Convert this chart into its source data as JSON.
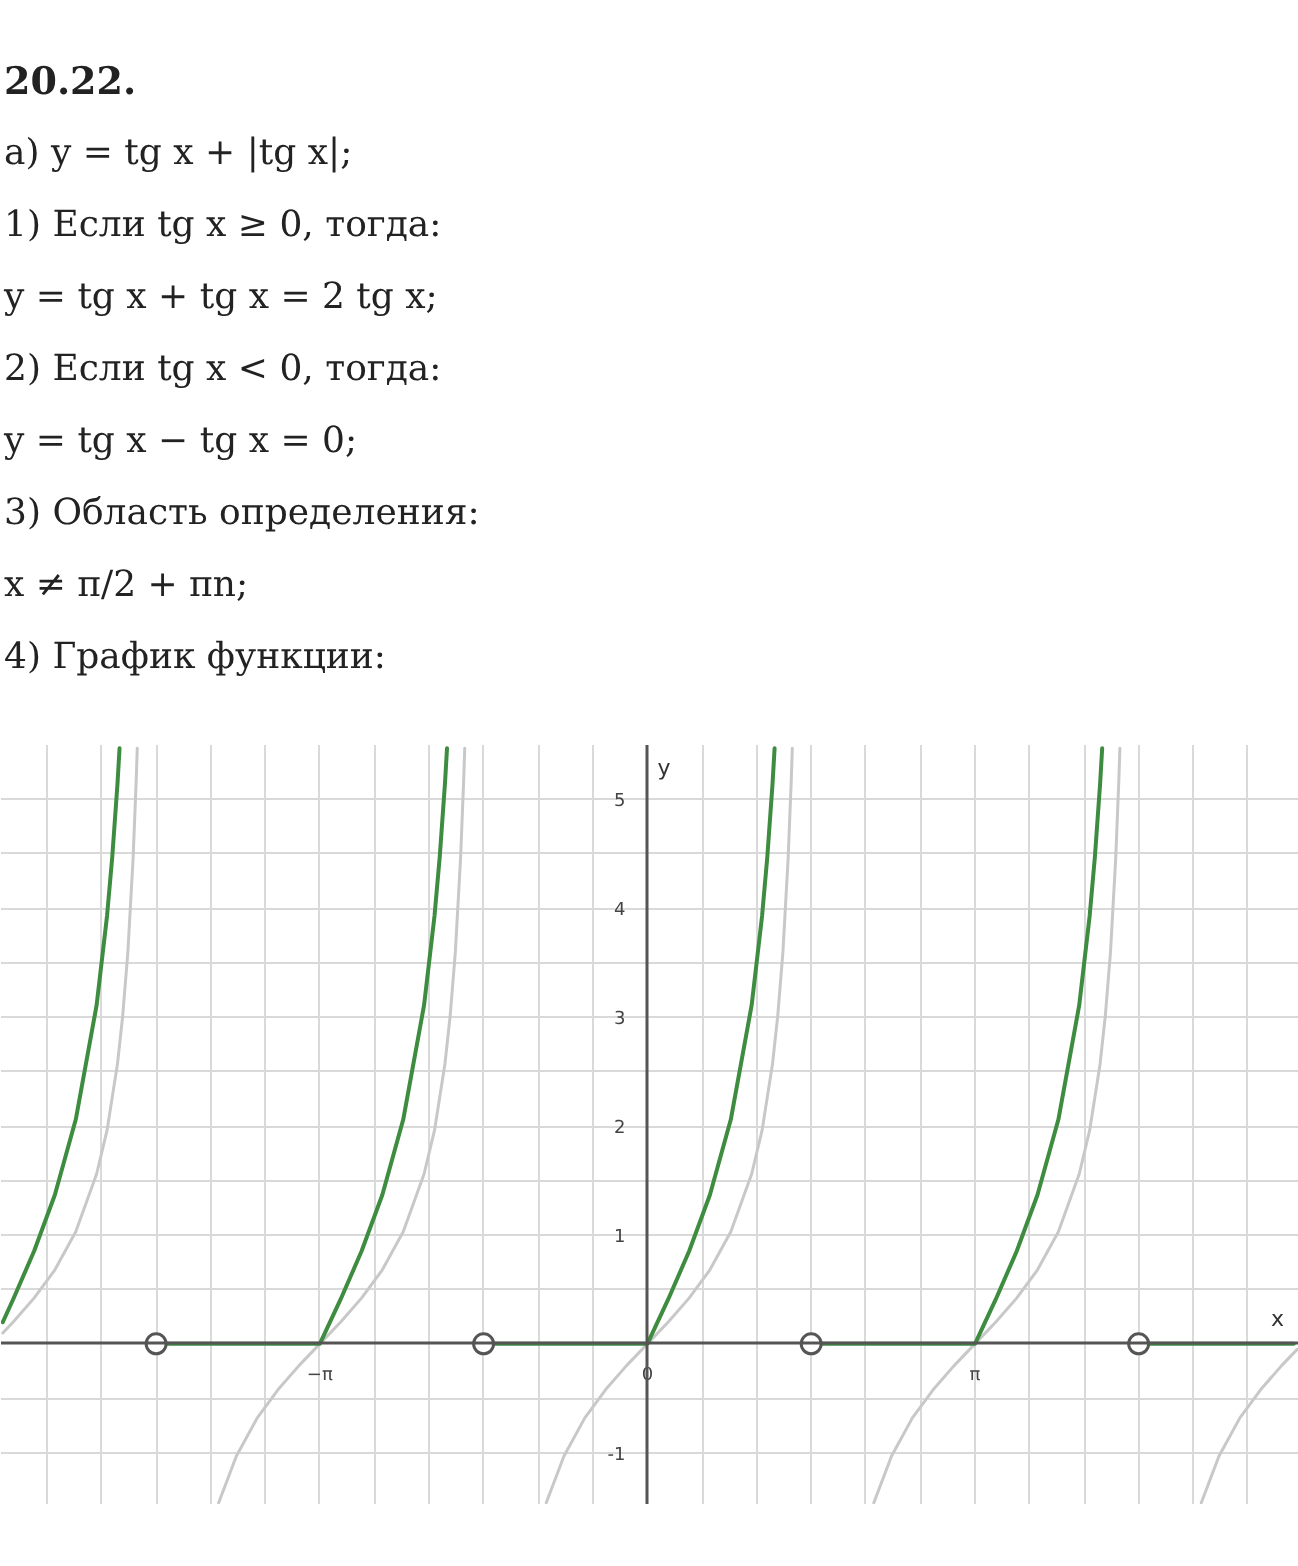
{
  "chart_data": {
    "type": "line",
    "title": "20.22.",
    "annotations": [
      "а) y = tg x + |tg x|;",
      "1) Если tg x ≥ 0, тогда:",
      "y = tg x + tg x = 2 tg x;",
      "2) Если tg x < 0, тогда:",
      "y = tg x − tg x = 0;",
      "3) Область определения:",
      "x ≠ π/2 + πn;",
      "4) График функции:"
    ],
    "xlabel": "x",
    "ylabel": "y",
    "xlim": [
      -6.2,
      6.25
    ],
    "ylim": [
      -1.48,
      5.5
    ],
    "xticks": [
      {
        "value": -5.76,
        "label": null
      },
      {
        "value": -5.236,
        "label": null
      },
      {
        "value": -4.712,
        "label": null
      },
      {
        "value": -4.189,
        "label": null
      },
      {
        "value": -3.665,
        "label": null
      },
      {
        "value": -3.142,
        "label": "−π"
      },
      {
        "value": -2.618,
        "label": null
      },
      {
        "value": -2.094,
        "label": null
      },
      {
        "value": -1.571,
        "label": null
      },
      {
        "value": -1.047,
        "label": null
      },
      {
        "value": -0.524,
        "label": null
      },
      0,
      {
        "value": 0.524,
        "label": null
      },
      {
        "value": 1.047,
        "label": null
      },
      {
        "value": 1.571,
        "label": null
      },
      {
        "value": 2.094,
        "label": null
      },
      {
        "value": 2.618,
        "label": null
      },
      {
        "value": 3.142,
        "label": "π"
      },
      {
        "value": 3.665,
        "label": null
      },
      {
        "value": 4.189,
        "label": null
      },
      {
        "value": 4.712,
        "label": null
      },
      {
        "value": 5.236,
        "label": null
      },
      {
        "value": 5.76,
        "label": null
      }
    ],
    "yticks": [
      -1,
      {
        "value": -0.5,
        "label": null
      },
      {
        "value": 0.5,
        "label": null
      },
      1,
      {
        "value": 1.5,
        "label": null
      },
      2,
      {
        "value": 2.5,
        "label": null
      },
      3,
      {
        "value": 3.5,
        "label": null
      },
      4,
      {
        "value": 4.5,
        "label": null
      },
      5
    ],
    "grid": true,
    "series": [
      {
        "color": "#c8c8c8",
        "x": [
          -6.183,
          -6.083,
          -5.883,
          -5.683,
          -5.483,
          -5.283,
          -5.183,
          -5.083,
          -5.033,
          -4.983,
          -4.933,
          -4.903,
          -4.893,
          -4.7,
          -4.112,
          -3.942,
          -3.742,
          -3.542,
          -3.342,
          -3.142,
          -2.942,
          -2.742,
          -2.542,
          -2.342,
          -2.142,
          -2.042,
          -1.942,
          -1.892,
          -1.842,
          -1.792,
          -1.762,
          -1.752,
          -1.5,
          -0.97,
          -0.8,
          -0.6,
          -0.4,
          -0.2,
          0,
          0.2,
          0.4,
          0.6,
          0.8,
          1.0,
          1.1,
          1.2,
          1.25,
          1.3,
          1.35,
          1.38,
          1.39,
          1.6,
          2.172,
          2.342,
          2.542,
          2.742,
          2.942,
          3.142,
          3.342,
          3.542,
          3.742,
          3.942,
          4.142,
          4.242,
          4.342,
          4.392,
          4.442,
          4.492,
          4.522,
          4.532,
          4.7,
          5.313,
          5.483,
          5.683,
          5.883,
          6.083,
          6.233
        ],
        "values": [
          0.1,
          0.2,
          0.42,
          0.68,
          1.03,
          1.56,
          1.96,
          2.57,
          3.01,
          3.6,
          4.46,
          5.18,
          5.47,
          null,
          -1.46,
          -1.03,
          -0.68,
          -0.42,
          -0.2,
          0,
          0.2,
          0.42,
          0.68,
          1.03,
          1.56,
          1.96,
          2.57,
          3.01,
          3.6,
          4.46,
          5.18,
          5.47,
          null,
          -1.46,
          -1.03,
          -0.68,
          -0.42,
          -0.2,
          0,
          0.2,
          0.42,
          0.68,
          1.03,
          1.56,
          1.96,
          2.57,
          3.01,
          3.6,
          4.46,
          5.18,
          5.47,
          null,
          -1.46,
          -1.03,
          -0.68,
          -0.42,
          -0.2,
          0,
          0.2,
          0.42,
          0.68,
          1.03,
          1.56,
          1.96,
          2.57,
          3.01,
          3.6,
          4.46,
          5.18,
          5.47,
          null,
          -1.46,
          -1.03,
          -0.68,
          -0.42,
          -0.2,
          -0.05
        ]
      },
      {
        "color": "#3d8c40",
        "x": [
          -6.183,
          -6.083,
          -5.883,
          -5.683,
          -5.483,
          -5.283,
          -5.183,
          -5.133,
          -5.083,
          -5.063,
          -4.9,
          -4.712,
          -3.142,
          -2.942,
          -2.742,
          -2.542,
          -2.342,
          -2.142,
          -2.042,
          -1.992,
          -1.942,
          -1.922,
          -1.7,
          -1.571,
          0,
          0.2,
          0.4,
          0.6,
          0.8,
          1.0,
          1.1,
          1.15,
          1.2,
          1.22,
          1.4,
          1.571,
          3.142,
          3.342,
          3.542,
          3.742,
          3.942,
          4.142,
          4.242,
          4.292,
          4.342,
          4.362,
          4.5,
          4.712,
          6.2
        ],
        "values": [
          0.2,
          0.41,
          0.85,
          1.37,
          2.06,
          3.11,
          3.93,
          4.47,
          5.14,
          5.47,
          null,
          0,
          0,
          0.41,
          0.85,
          1.37,
          2.06,
          3.11,
          3.93,
          4.47,
          5.14,
          5.47,
          null,
          0,
          0,
          0.41,
          0.85,
          1.37,
          2.06,
          3.11,
          3.93,
          4.47,
          5.14,
          5.47,
          null,
          0,
          0,
          0.41,
          0.85,
          1.37,
          2.06,
          3.11,
          3.93,
          4.47,
          5.14,
          5.47,
          null,
          0,
          0
        ]
      },
      {
        "type": "scatter",
        "marker": "circle",
        "color": "#555555",
        "x": [
          -4.712,
          -1.571,
          1.571,
          4.712
        ],
        "values": [
          0,
          0,
          0,
          0
        ]
      }
    ]
  }
}
